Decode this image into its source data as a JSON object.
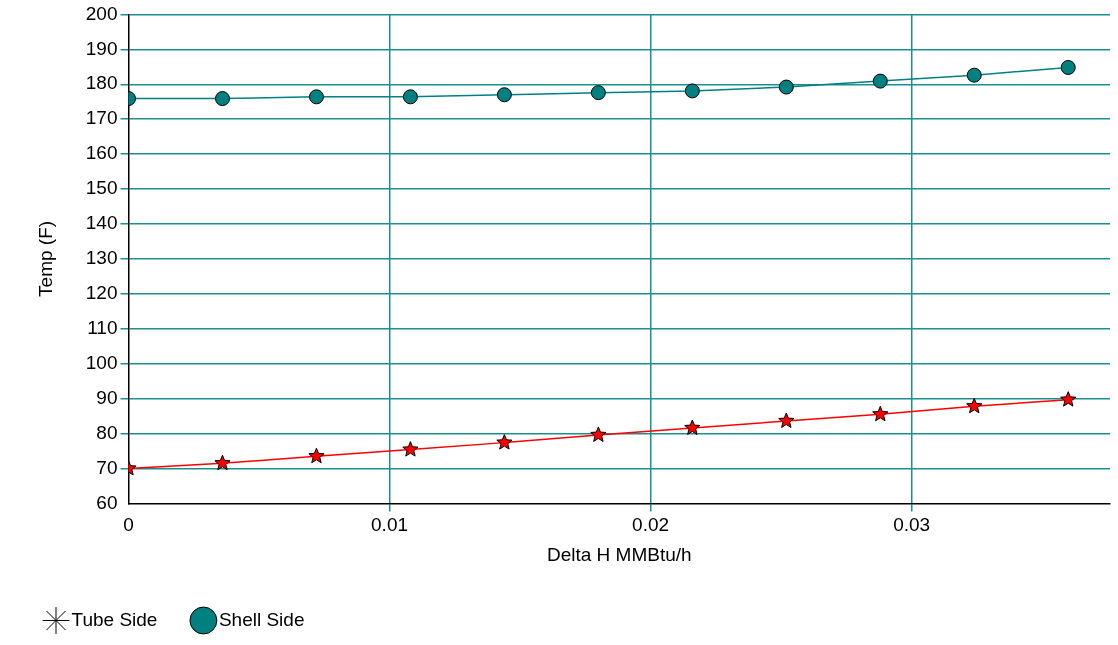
{
  "chart_data": {
    "type": "line",
    "xlabel": "Delta H MMBtu/h",
    "ylabel": "Temp (F)",
    "x": [
      0,
      0.0036,
      0.0072,
      0.0108,
      0.0144,
      0.018,
      0.0216,
      0.0252,
      0.0288,
      0.0324,
      0.036
    ],
    "series": [
      {
        "name": "Tube Side",
        "color": "#ff0000",
        "marker": "star",
        "values": [
          70,
          71.5,
          73.5,
          75.4,
          77.4,
          79.6,
          81.6,
          83.6,
          85.5,
          87.8,
          89.7
        ]
      },
      {
        "name": "Shell Side",
        "color": "#008080",
        "marker": "circle",
        "values": [
          175.9,
          175.9,
          176.4,
          176.4,
          177,
          177.6,
          178.1,
          179.2,
          180.9,
          182.6,
          184.8
        ]
      }
    ],
    "xlim": [
      0,
      0.0376
    ],
    "xticks": [
      0,
      0.01,
      0.02,
      0.03
    ],
    "ylim": [
      60,
      200
    ],
    "yticks": [
      60,
      70,
      80,
      90,
      100,
      110,
      120,
      130,
      140,
      150,
      160,
      170,
      180,
      190,
      200
    ],
    "grid": true,
    "legend": "bottom left"
  }
}
